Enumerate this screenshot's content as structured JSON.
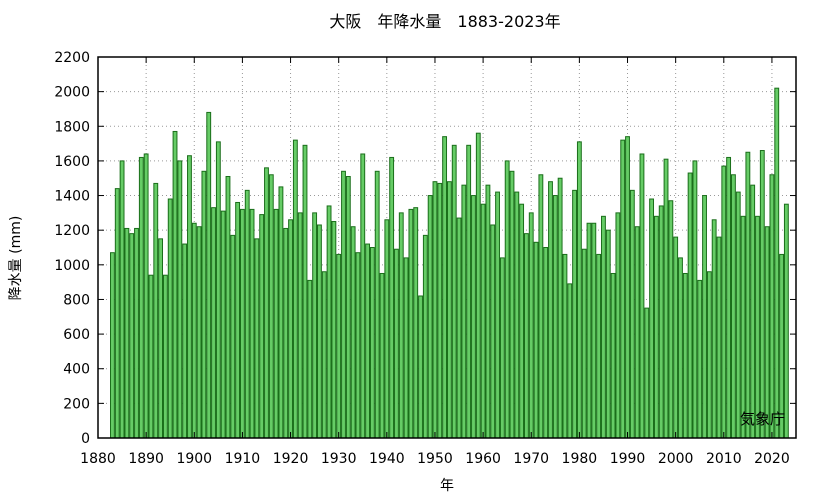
{
  "chart_data": {
    "type": "bar",
    "title": "大阪　年降水量　1883-2023年",
    "xlabel": "年",
    "ylabel": "降水量 (mm)",
    "credit": "気象庁",
    "xlim": [
      1880,
      2025
    ],
    "ylim": [
      0,
      2200
    ],
    "xticks": [
      "1880",
      "1890",
      "1900",
      "1910",
      "1920",
      "1930",
      "1940",
      "1950",
      "1960",
      "1970",
      "1980",
      "1990",
      "2000",
      "2010",
      "2020"
    ],
    "yticks": [
      "0",
      "200",
      "400",
      "600",
      "800",
      "1000",
      "1200",
      "1400",
      "1600",
      "1800",
      "2000",
      "2200"
    ],
    "grid": true,
    "bar_color": "#66cc66",
    "bar_edge_color": "#1a6e1a",
    "x": [
      1883,
      1884,
      1885,
      1886,
      1887,
      1888,
      1889,
      1890,
      1891,
      1892,
      1893,
      1894,
      1895,
      1896,
      1897,
      1898,
      1899,
      1900,
      1901,
      1902,
      1903,
      1904,
      1905,
      1906,
      1907,
      1908,
      1909,
      1910,
      1911,
      1912,
      1913,
      1914,
      1915,
      1916,
      1917,
      1918,
      1919,
      1920,
      1921,
      1922,
      1923,
      1924,
      1925,
      1926,
      1927,
      1928,
      1929,
      1930,
      1931,
      1932,
      1933,
      1934,
      1935,
      1936,
      1937,
      1938,
      1939,
      1940,
      1941,
      1942,
      1943,
      1944,
      1945,
      1946,
      1947,
      1948,
      1949,
      1950,
      1951,
      1952,
      1953,
      1954,
      1955,
      1956,
      1957,
      1958,
      1959,
      1960,
      1961,
      1962,
      1963,
      1964,
      1965,
      1966,
      1967,
      1968,
      1969,
      1970,
      1971,
      1972,
      1973,
      1974,
      1975,
      1976,
      1977,
      1978,
      1979,
      1980,
      1981,
      1982,
      1983,
      1984,
      1985,
      1986,
      1987,
      1988,
      1989,
      1990,
      1991,
      1992,
      1993,
      1994,
      1995,
      1996,
      1997,
      1998,
      1999,
      2000,
      2001,
      2002,
      2003,
      2004,
      2005,
      2006,
      2007,
      2008,
      2009,
      2010,
      2011,
      2012,
      2013,
      2014,
      2015,
      2016,
      2017,
      2018,
      2019,
      2020,
      2021,
      2022,
      2023
    ],
    "values": [
      1070,
      1440,
      1600,
      1210,
      1180,
      1210,
      1620,
      1640,
      940,
      1470,
      1150,
      940,
      1380,
      1770,
      1600,
      1120,
      1630,
      1240,
      1220,
      1540,
      1880,
      1330,
      1710,
      1310,
      1510,
      1170,
      1360,
      1320,
      1430,
      1320,
      1150,
      1290,
      1560,
      1520,
      1320,
      1450,
      1210,
      1260,
      1720,
      1300,
      1690,
      910,
      1300,
      1230,
      960,
      1340,
      1250,
      1060,
      1540,
      1510,
      1220,
      1070,
      1640,
      1120,
      1100,
      1540,
      950,
      1260,
      1620,
      1090,
      1300,
      1040,
      1320,
      1330,
      820,
      1170,
      1400,
      1480,
      1470,
      1740,
      1480,
      1690,
      1270,
      1460,
      1690,
      1400,
      1760,
      1350,
      1460,
      1230,
      1420,
      1040,
      1600,
      1540,
      1420,
      1350,
      1180,
      1300,
      1130,
      1520,
      1100,
      1480,
      1400,
      1500,
      1060,
      890,
      1430,
      1710,
      1090,
      1240,
      1240,
      1060,
      1280,
      1200,
      950,
      1300,
      1720,
      1740,
      1430,
      1220,
      1640,
      750,
      1380,
      1280,
      1340,
      1610,
      1370,
      1160,
      1040,
      950,
      1530,
      1600,
      910,
      1400,
      960,
      1260,
      1160,
      1570,
      1620,
      1520,
      1420,
      1280,
      1650,
      1460,
      1280,
      1660,
      1220,
      1520,
      2020,
      1060,
      1350
    ]
  }
}
